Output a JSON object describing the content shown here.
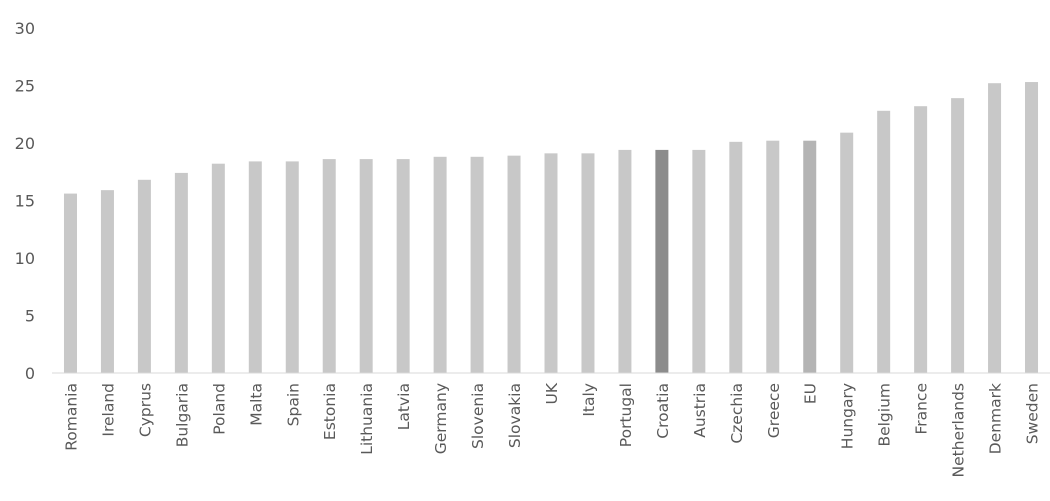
{
  "chart_data": {
    "type": "bar",
    "title": "",
    "xlabel": "",
    "ylabel": "",
    "ylim": [
      0,
      30
    ],
    "yticks": [
      0,
      5,
      10,
      15,
      20,
      25,
      30
    ],
    "grid": false,
    "legend": "none",
    "categories": [
      "Romania",
      "Ireland",
      "Cyprus",
      "Bulgaria",
      "Poland",
      "Malta",
      "Spain",
      "Estonia",
      "Lithuania",
      "Latvia",
      "Germany",
      "Slovenia",
      "Slovakia",
      "UK",
      "Italy",
      "Portugal",
      "Croatia",
      "Austria",
      "Czechia",
      "Greece",
      "EU",
      "Hungary",
      "Belgium",
      "France",
      "Netherlands",
      "Denmark",
      "Sweden"
    ],
    "values": [
      15.6,
      15.9,
      16.8,
      17.4,
      18.2,
      18.4,
      18.4,
      18.6,
      18.6,
      18.6,
      18.8,
      18.8,
      18.9,
      19.1,
      19.1,
      19.4,
      19.4,
      19.4,
      20.1,
      20.2,
      20.2,
      20.9,
      22.8,
      23.2,
      23.9,
      25.2,
      25.3
    ],
    "colors": {
      "default": "#c8c8c8",
      "highlight": "#8c8c8c",
      "eu": "#b4b4b4",
      "axis": "#d9d9d9",
      "text": "#595959"
    },
    "highlight_categories": {
      "Croatia": "highlight",
      "EU": "eu"
    }
  }
}
